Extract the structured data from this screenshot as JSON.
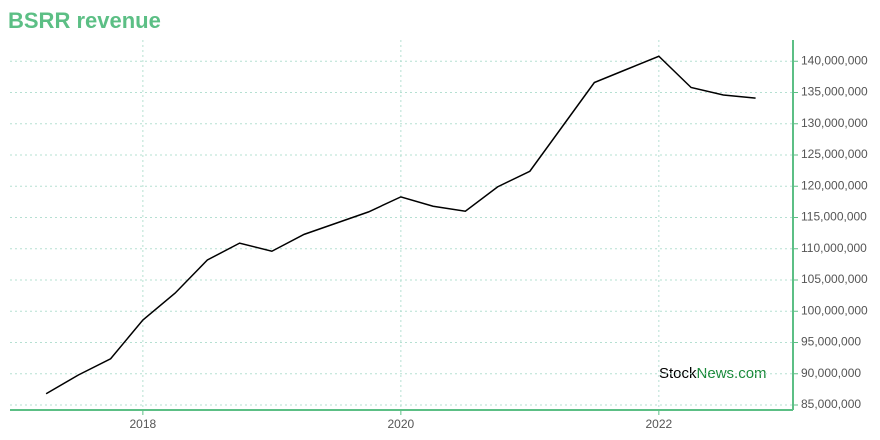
{
  "chart_data": {
    "type": "line",
    "title": "BSRR revenue",
    "x": [
      2017.25,
      2017.5,
      2017.75,
      2018.0,
      2018.25,
      2018.5,
      2018.75,
      2019.0,
      2019.25,
      2019.5,
      2019.75,
      2020.0,
      2020.25,
      2020.5,
      2020.75,
      2021.0,
      2021.25,
      2021.5,
      2021.75,
      2022.0,
      2022.25,
      2022.5,
      2022.75
    ],
    "series": [
      {
        "name": "BSRR revenue",
        "color": "#000000",
        "values": [
          86800000,
          89800000,
          92400000,
          98600000,
          102900000,
          108200000,
          110900000,
          109600000,
          112300000,
          114100000,
          115900000,
          118300000,
          116800000,
          116000000,
          119900000,
          122400000,
          129500000,
          136600000,
          138700000,
          140800000,
          135800000,
          134600000,
          134100000
        ]
      }
    ],
    "xlim": [
      2016.97,
      2023.04
    ],
    "xticks": [
      2018,
      2020,
      2022
    ],
    "ylim": [
      84200000,
      143400000
    ],
    "yticks": [
      {
        "value": 85000000,
        "label": "85,000,000"
      },
      {
        "value": 90000000,
        "label": "90,000,000"
      },
      {
        "value": 95000000,
        "label": "95,000,000"
      },
      {
        "value": 100000000,
        "label": "100,000,000"
      },
      {
        "value": 105000000,
        "label": "105,000,000"
      },
      {
        "value": 110000000,
        "label": "110,000,000"
      },
      {
        "value": 115000000,
        "label": "115,000,000"
      },
      {
        "value": 120000000,
        "label": "120,000,000"
      },
      {
        "value": 125000000,
        "label": "125,000,000"
      },
      {
        "value": 130000000,
        "label": "130,000,000"
      },
      {
        "value": 135000000,
        "label": "135,000,000"
      },
      {
        "value": 140000000,
        "label": "140,000,000"
      }
    ],
    "grid": true,
    "axis_color": "#5cbf85"
  },
  "watermark": [
    "Stock",
    "News.com"
  ]
}
